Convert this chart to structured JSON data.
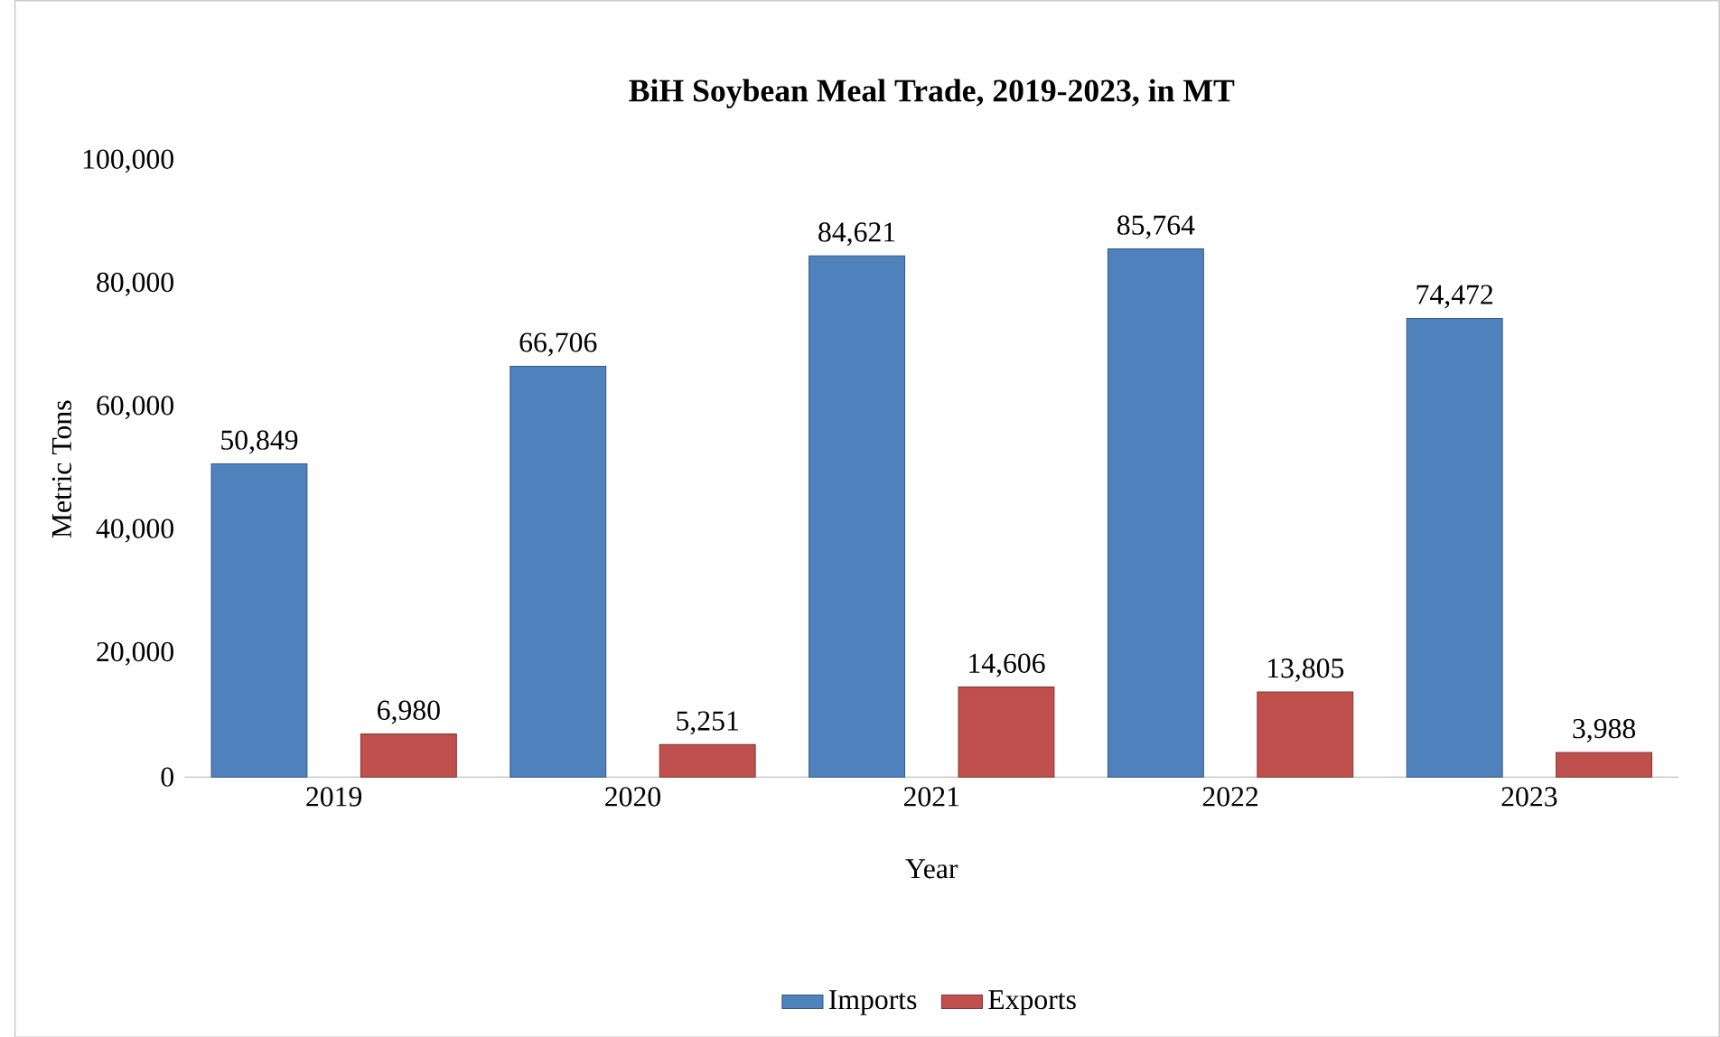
{
  "chart_data": {
    "type": "bar",
    "title": "BiH Soybean Meal Trade, 2019-2023, in MT",
    "xlabel": "Year",
    "ylabel": "Metric Tons",
    "categories": [
      "2019",
      "2020",
      "2021",
      "2022",
      "2023"
    ],
    "series": [
      {
        "name": "Imports",
        "color": "#4f81bd",
        "values": [
          50849,
          66706,
          84621,
          85764,
          74472
        ],
        "value_labels": [
          "50,849",
          "66,706",
          "84,621",
          "85,764",
          "74,472"
        ]
      },
      {
        "name": "Exports",
        "color": "#c0504d",
        "values": [
          6980,
          5251,
          14606,
          13805,
          3988
        ],
        "value_labels": [
          "6,980",
          "5,251",
          "14,606",
          "13,805",
          "3,988"
        ]
      }
    ],
    "ylim": [
      0,
      100000
    ],
    "yticks": [
      {
        "value": 0,
        "label": "0"
      },
      {
        "value": 20000,
        "label": "20,000"
      },
      {
        "value": 40000,
        "label": "40,000"
      },
      {
        "value": 60000,
        "label": "60,000"
      },
      {
        "value": 80000,
        "label": "80,000"
      },
      {
        "value": 100000,
        "label": "100,000"
      }
    ],
    "grid": false,
    "legend": "bottom"
  }
}
